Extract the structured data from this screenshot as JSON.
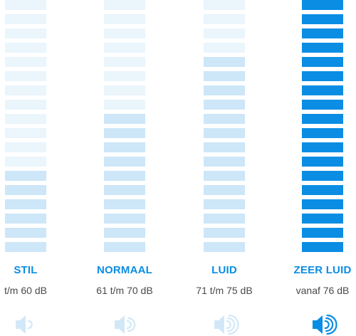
{
  "levels": [
    {
      "id": "stil",
      "label": "STIL",
      "range": "t/m 60 dB",
      "icon": "speaker-low-icon",
      "active_bars": 6,
      "sound_waves": 1,
      "color_active": "#cde6f8",
      "color_inactive": "#eaf5fc",
      "icon_color": "#d2e8f8"
    },
    {
      "id": "normaal",
      "label": "NORMAAL",
      "range": "61 t/m 70 dB",
      "icon": "speaker-medium-icon",
      "active_bars": 10,
      "sound_waves": 2,
      "color_active": "#cde6f8",
      "color_inactive": "#eaf5fc",
      "icon_color": "#d2e8f8"
    },
    {
      "id": "luid",
      "label": "LUID",
      "range": "71 t/m 75 dB",
      "icon": "speaker-loud-icon",
      "active_bars": 14,
      "sound_waves": 3,
      "color_active": "#cde6f8",
      "color_inactive": "#eaf5fc",
      "icon_color": "#d2e8f8"
    },
    {
      "id": "zeer-luid",
      "label": "ZEER LUID",
      "range": "vanaf 76 dB",
      "icon": "speaker-very-loud-icon",
      "active_bars": 18,
      "sound_waves": 3,
      "color_active": "#0a8de3",
      "color_inactive": "#0a8de3",
      "icon_color": "#0a8de3"
    }
  ],
  "total_bars": 18
}
